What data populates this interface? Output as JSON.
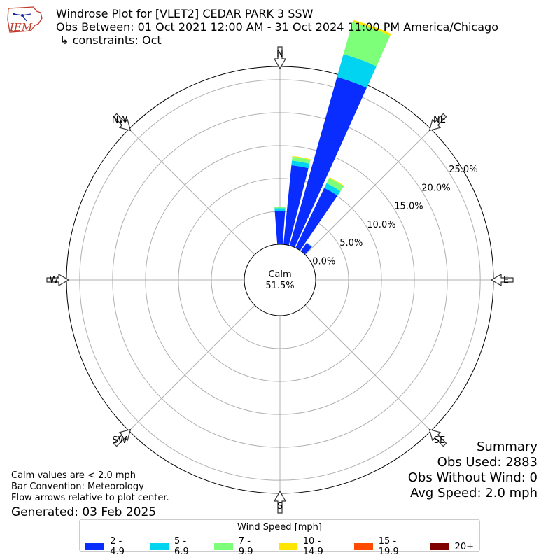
{
  "header": {
    "title_line1": "Windrose Plot for [VLET2] CEDAR PARK 3 SSW",
    "title_line2": "Obs Between: 01 Oct 2021 12:00 AM - 31 Oct 2024 11:00 PM America/Chicago",
    "title_line3": " ↳ constraints: Oct",
    "logo_text": "IEM"
  },
  "summary": {
    "heading": "Summary",
    "obs_used": "Obs Used: 2883",
    "obs_without_wind": "Obs Without Wind: 0",
    "avg_speed": "Avg Speed: 2.0 mph"
  },
  "notes": {
    "calm_note": "Calm values are < 2.0 mph",
    "bar_convention": "Bar Convention: Meteorology",
    "flow_arrows": "Flow arrows relative to plot center.",
    "generated": "Generated: 03 Feb 2025"
  },
  "legend": {
    "title": "Wind Speed [mph]",
    "items": [
      {
        "label": "2 - 4.9",
        "color": "#0a2dff"
      },
      {
        "label": "5 - 6.9",
        "color": "#00d4f0"
      },
      {
        "label": "7 - 9.9",
        "color": "#7dff7a"
      },
      {
        "label": "10 - 14.9",
        "color": "#ffe600"
      },
      {
        "label": "15 - 19.9",
        "color": "#ff4a00"
      },
      {
        "label": "20+",
        "color": "#800000"
      }
    ]
  },
  "chart_data": {
    "type": "windrose",
    "calm_label": "Calm",
    "calm_value": "51.5%",
    "rlim": [
      0,
      27
    ],
    "radial_ticks": [
      0,
      5,
      10,
      15,
      20,
      25
    ],
    "radial_tick_labels": [
      "0.0%",
      "5.0%",
      "10.0%",
      "15.0%",
      "20.0%",
      "25.0%"
    ],
    "directions": [
      "N",
      "NE",
      "E",
      "SE",
      "S",
      "SW",
      "W",
      "NW"
    ],
    "speed_bins": [
      "2 - 4.9",
      "5 - 6.9",
      "7 - 9.9",
      "10 - 14.9",
      "15 - 19.9",
      "20+"
    ],
    "colors": [
      "#0a2dff",
      "#00d4f0",
      "#7dff7a",
      "#ffe600",
      "#ff4a00",
      "#800000"
    ],
    "series": [
      {
        "direction_deg": 0,
        "values": [
          5.1,
          0.4,
          0.2,
          0.0,
          0.0,
          0.0
        ]
      },
      {
        "direction_deg": 10,
        "values": [
          12.1,
          0.7,
          0.6,
          0.1,
          0.0,
          0.0
        ]
      },
      {
        "direction_deg": 20,
        "values": [
          26.6,
          3.6,
          5.1,
          0.3,
          0.0,
          0.0
        ]
      },
      {
        "direction_deg": 30,
        "values": [
          10.1,
          0.8,
          0.9,
          0.1,
          0.0,
          0.0
        ]
      },
      {
        "direction_deg": 40,
        "values": [
          1.5,
          0.1,
          0.0,
          0.0,
          0.0,
          0.0
        ]
      }
    ]
  }
}
